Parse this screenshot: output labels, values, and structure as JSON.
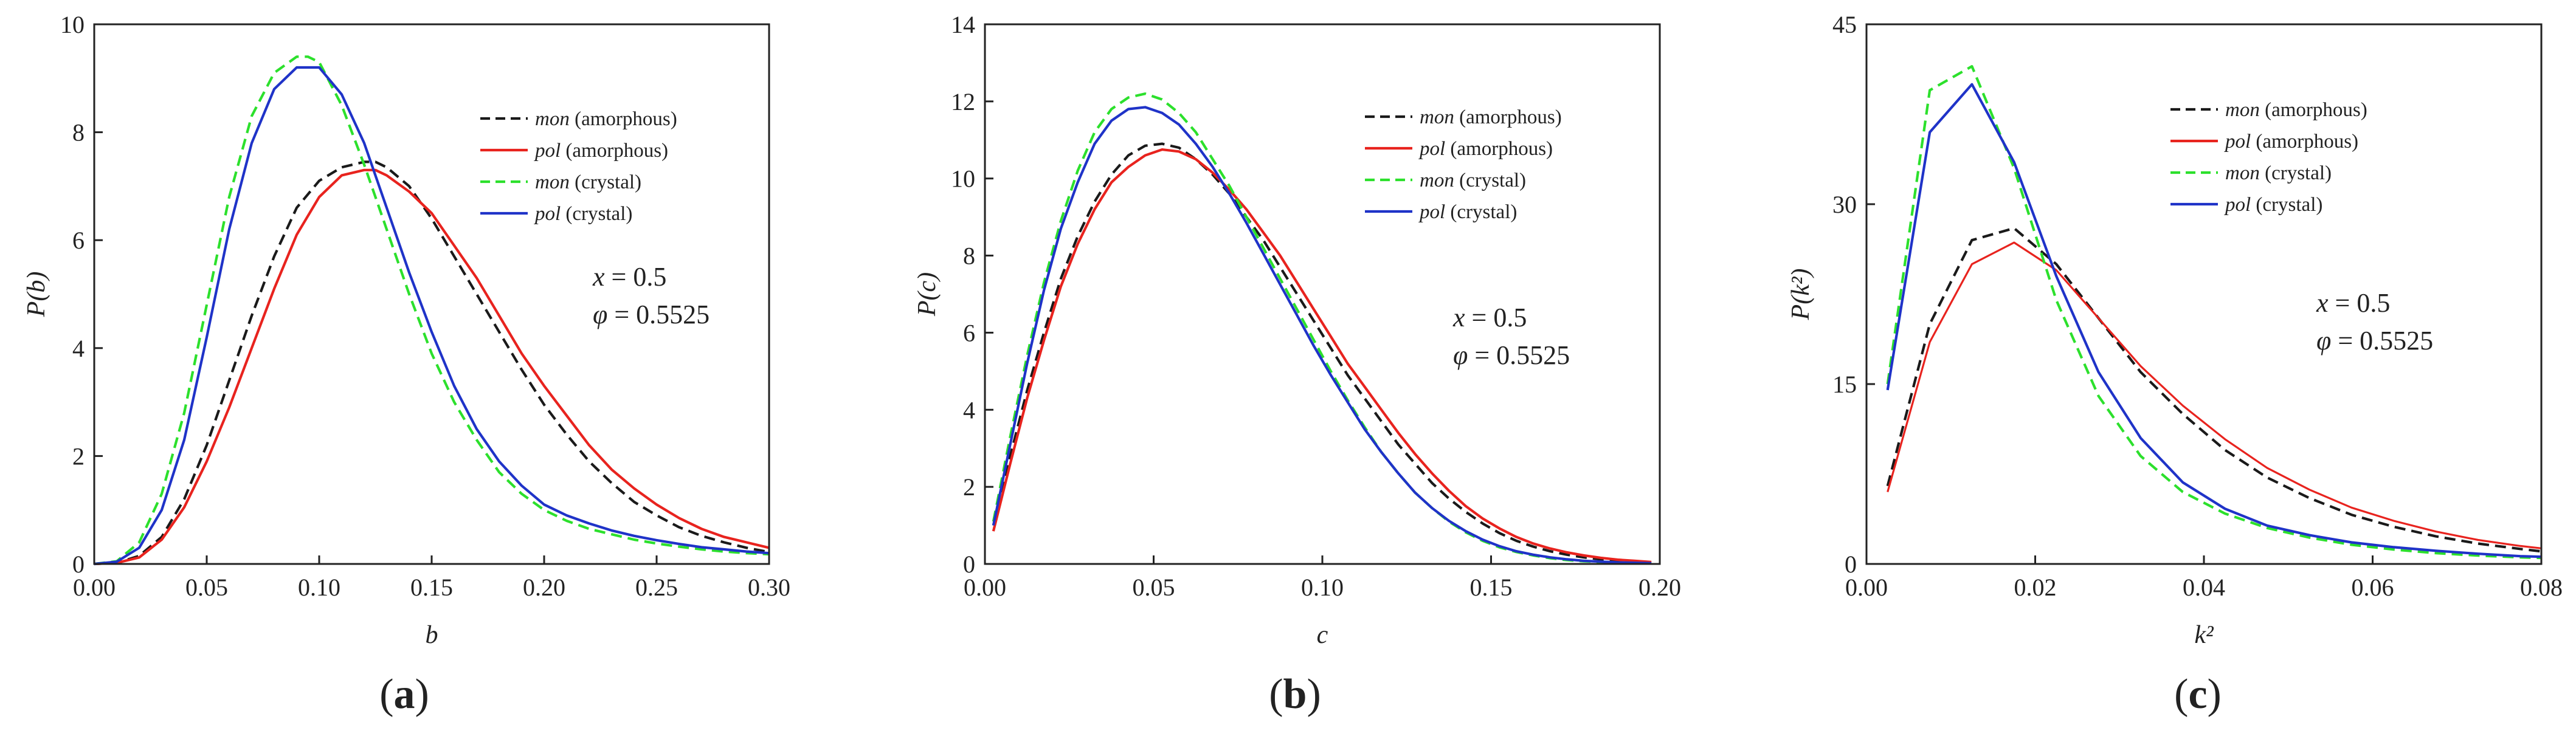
{
  "colors": {
    "mon_amorphous": "#1a1a1a",
    "pol_amorphous": "#e8231e",
    "mon_crystal": "#2ce02c",
    "pol_crystal": "#1f33c8",
    "axis": "#222222"
  },
  "chart_data": [
    {
      "type": "line",
      "panel_label": "a",
      "xlabel": "b",
      "ylabel": "P(b)",
      "xlim": [
        0,
        0.3
      ],
      "ylim": [
        0,
        10
      ],
      "xticks": [
        "0.00",
        "0.05",
        "0.10",
        "0.15",
        "0.20",
        "0.25",
        "0.30"
      ],
      "yticks": [
        "0",
        "2",
        "4",
        "6",
        "8",
        "10"
      ],
      "xtick_values": [
        0,
        0.05,
        0.1,
        0.15,
        0.2,
        0.25,
        0.3
      ],
      "ytick_values": [
        0,
        2,
        4,
        6,
        8,
        10
      ],
      "annotation": {
        "x_eq": "x",
        "x_val": " = 0.5",
        "phi_eq": "φ",
        "phi_val": " = 0.5525"
      },
      "legend_placement": "top-right",
      "series": [
        {
          "key": "mon_amorphous",
          "name_italic": "mon",
          "name_rest": " (amorphous)",
          "dash": "dashed",
          "x": [
            0,
            0.01,
            0.02,
            0.03,
            0.04,
            0.05,
            0.06,
            0.07,
            0.08,
            0.09,
            0.1,
            0.11,
            0.12,
            0.125,
            0.13,
            0.14,
            0.15,
            0.16,
            0.17,
            0.18,
            0.19,
            0.2,
            0.21,
            0.22,
            0.23,
            0.24,
            0.25,
            0.26,
            0.27,
            0.28,
            0.29,
            0.3
          ],
          "y": [
            0,
            0.02,
            0.15,
            0.5,
            1.2,
            2.2,
            3.4,
            4.6,
            5.7,
            6.6,
            7.1,
            7.35,
            7.45,
            7.45,
            7.35,
            7.0,
            6.4,
            5.7,
            5.0,
            4.3,
            3.6,
            2.95,
            2.4,
            1.9,
            1.5,
            1.15,
            0.9,
            0.68,
            0.52,
            0.4,
            0.3,
            0.22
          ]
        },
        {
          "key": "pol_amorphous",
          "name_italic": "pol",
          "name_rest": " (amorphous)",
          "dash": "solid",
          "x": [
            0,
            0.01,
            0.02,
            0.03,
            0.04,
            0.05,
            0.06,
            0.07,
            0.08,
            0.09,
            0.1,
            0.11,
            0.12,
            0.125,
            0.13,
            0.14,
            0.15,
            0.16,
            0.17,
            0.18,
            0.19,
            0.2,
            0.21,
            0.22,
            0.23,
            0.24,
            0.25,
            0.26,
            0.27,
            0.28,
            0.29,
            0.3
          ],
          "y": [
            0,
            0.02,
            0.12,
            0.45,
            1.05,
            1.9,
            2.9,
            4.0,
            5.1,
            6.1,
            6.8,
            7.2,
            7.3,
            7.3,
            7.2,
            6.9,
            6.5,
            5.9,
            5.3,
            4.6,
            3.9,
            3.3,
            2.75,
            2.2,
            1.75,
            1.4,
            1.1,
            0.85,
            0.65,
            0.5,
            0.4,
            0.3
          ]
        },
        {
          "key": "mon_crystal",
          "name_italic": "mon",
          "name_rest": " (crystal)",
          "dash": "dashed",
          "x": [
            0,
            0.01,
            0.02,
            0.03,
            0.04,
            0.05,
            0.06,
            0.07,
            0.08,
            0.09,
            0.095,
            0.1,
            0.11,
            0.12,
            0.13,
            0.14,
            0.15,
            0.16,
            0.17,
            0.18,
            0.19,
            0.2,
            0.21,
            0.22,
            0.23,
            0.24,
            0.25,
            0.26,
            0.27,
            0.28,
            0.29,
            0.3
          ],
          "y": [
            0,
            0.05,
            0.4,
            1.3,
            2.8,
            4.8,
            6.8,
            8.3,
            9.1,
            9.4,
            9.4,
            9.3,
            8.5,
            7.4,
            6.2,
            5.0,
            3.9,
            3.0,
            2.3,
            1.7,
            1.3,
            1.0,
            0.8,
            0.65,
            0.55,
            0.45,
            0.38,
            0.32,
            0.27,
            0.23,
            0.2,
            0.18
          ]
        },
        {
          "key": "pol_crystal",
          "name_italic": "pol",
          "name_rest": " (crystal)",
          "dash": "solid",
          "x": [
            0,
            0.01,
            0.02,
            0.03,
            0.04,
            0.05,
            0.06,
            0.07,
            0.08,
            0.09,
            0.1,
            0.11,
            0.12,
            0.13,
            0.14,
            0.15,
            0.16,
            0.17,
            0.18,
            0.19,
            0.2,
            0.21,
            0.22,
            0.23,
            0.24,
            0.25,
            0.26,
            0.27,
            0.28,
            0.29,
            0.3
          ],
          "y": [
            0,
            0.04,
            0.3,
            1.0,
            2.3,
            4.2,
            6.2,
            7.8,
            8.8,
            9.2,
            9.2,
            8.7,
            7.8,
            6.6,
            5.4,
            4.3,
            3.3,
            2.5,
            1.9,
            1.45,
            1.1,
            0.9,
            0.75,
            0.62,
            0.52,
            0.44,
            0.37,
            0.31,
            0.27,
            0.23,
            0.2
          ]
        }
      ]
    },
    {
      "type": "line",
      "panel_label": "b",
      "xlabel": "c",
      "ylabel": "P(c)",
      "xlim": [
        0,
        0.2
      ],
      "ylim": [
        0,
        14
      ],
      "xticks": [
        "0.00",
        "0.05",
        "0.10",
        "0.15",
        "0.20"
      ],
      "yticks": [
        "0",
        "2",
        "4",
        "6",
        "8",
        "10",
        "12",
        "14"
      ],
      "xtick_values": [
        0,
        0.05,
        0.1,
        0.15,
        0.2
      ],
      "ytick_values": [
        0,
        2,
        4,
        6,
        8,
        10,
        12,
        14
      ],
      "annotation": {
        "x_eq": "x",
        "x_val": " = 0.5",
        "phi_eq": "φ",
        "phi_val": " = 0.5525"
      },
      "legend_placement": "top-right",
      "series": [
        {
          "key": "mon_amorphous",
          "name_italic": "mon",
          "name_rest": " (amorphous)",
          "dash": "dashed",
          "x": [
            0.0025,
            0.0075,
            0.0125,
            0.0175,
            0.0225,
            0.0275,
            0.0325,
            0.0375,
            0.0425,
            0.0475,
            0.0525,
            0.0575,
            0.0625,
            0.0675,
            0.0725,
            0.0775,
            0.0825,
            0.0875,
            0.0925,
            0.0975,
            0.1025,
            0.1075,
            0.1125,
            0.1175,
            0.1225,
            0.1275,
            0.1325,
            0.1375,
            0.1425,
            0.1475,
            0.1525,
            0.1575,
            0.1625,
            0.1675,
            0.1725,
            0.1775,
            0.1825,
            0.1875,
            0.1925,
            0.1975
          ],
          "y": [
            1.0,
            2.8,
            4.5,
            6.0,
            7.4,
            8.5,
            9.4,
            10.1,
            10.6,
            10.85,
            10.9,
            10.8,
            10.5,
            10.1,
            9.6,
            9.0,
            8.4,
            7.7,
            7.0,
            6.3,
            5.6,
            4.9,
            4.3,
            3.7,
            3.1,
            2.6,
            2.1,
            1.7,
            1.35,
            1.05,
            0.8,
            0.6,
            0.45,
            0.33,
            0.24,
            0.17,
            0.12,
            0.08,
            0.05,
            0.03
          ]
        },
        {
          "key": "pol_amorphous",
          "name_italic": "pol",
          "name_rest": " (amorphous)",
          "dash": "solid",
          "x": [
            0.0025,
            0.0075,
            0.0125,
            0.0175,
            0.0225,
            0.0275,
            0.0325,
            0.0375,
            0.0425,
            0.0475,
            0.0525,
            0.0575,
            0.0625,
            0.0675,
            0.0725,
            0.0775,
            0.0825,
            0.0875,
            0.0925,
            0.0975,
            0.1025,
            0.1075,
            0.1125,
            0.1175,
            0.1225,
            0.1275,
            0.1325,
            0.1375,
            0.1425,
            0.1475,
            0.1525,
            0.1575,
            0.1625,
            0.1675,
            0.1725,
            0.1775,
            0.1825,
            0.1875,
            0.1925,
            0.1975
          ],
          "y": [
            0.85,
            2.6,
            4.3,
            5.8,
            7.2,
            8.3,
            9.2,
            9.9,
            10.3,
            10.6,
            10.75,
            10.7,
            10.5,
            10.15,
            9.7,
            9.2,
            8.6,
            8.0,
            7.3,
            6.6,
            5.9,
            5.2,
            4.6,
            4.0,
            3.4,
            2.85,
            2.35,
            1.9,
            1.5,
            1.18,
            0.92,
            0.7,
            0.53,
            0.4,
            0.3,
            0.22,
            0.16,
            0.11,
            0.08,
            0.05
          ]
        },
        {
          "key": "mon_crystal",
          "name_italic": "mon",
          "name_rest": " (crystal)",
          "dash": "dashed",
          "x": [
            0.0025,
            0.0075,
            0.0125,
            0.0175,
            0.0225,
            0.0275,
            0.0325,
            0.0375,
            0.0425,
            0.0475,
            0.0525,
            0.0575,
            0.0625,
            0.0675,
            0.0725,
            0.0775,
            0.0825,
            0.0875,
            0.0925,
            0.0975,
            0.1025,
            0.1075,
            0.1125,
            0.1175,
            0.1225,
            0.1275,
            0.1325,
            0.1375,
            0.1425,
            0.1475,
            0.1525,
            0.1575,
            0.1625,
            0.1675,
            0.1725,
            0.1775,
            0.1825,
            0.1875,
            0.1925,
            0.1975
          ],
          "y": [
            1.1,
            3.3,
            5.4,
            7.3,
            8.9,
            10.2,
            11.2,
            11.8,
            12.1,
            12.2,
            12.05,
            11.7,
            11.2,
            10.5,
            9.8,
            9.0,
            8.2,
            7.4,
            6.6,
            5.8,
            5.0,
            4.25,
            3.55,
            2.9,
            2.35,
            1.85,
            1.45,
            1.1,
            0.82,
            0.6,
            0.43,
            0.31,
            0.22,
            0.15,
            0.1,
            0.07,
            0.05,
            0.03,
            0.02,
            0.01
          ]
        },
        {
          "key": "pol_crystal",
          "name_italic": "pol",
          "name_rest": " (crystal)",
          "dash": "solid",
          "x": [
            0.0025,
            0.0075,
            0.0125,
            0.0175,
            0.0225,
            0.0275,
            0.0325,
            0.0375,
            0.0425,
            0.0475,
            0.0525,
            0.0575,
            0.0625,
            0.0675,
            0.0725,
            0.0775,
            0.0825,
            0.0875,
            0.0925,
            0.0975,
            0.1025,
            0.1075,
            0.1125,
            0.1175,
            0.1225,
            0.1275,
            0.1325,
            0.1375,
            0.1425,
            0.1475,
            0.1525,
            0.1575,
            0.1625,
            0.1675,
            0.1725,
            0.1775,
            0.1825,
            0.1875,
            0.1925,
            0.1975
          ],
          "y": [
            1.0,
            3.1,
            5.2,
            7.1,
            8.7,
            9.9,
            10.9,
            11.5,
            11.8,
            11.85,
            11.7,
            11.4,
            10.9,
            10.3,
            9.6,
            8.85,
            8.05,
            7.25,
            6.45,
            5.65,
            4.9,
            4.2,
            3.5,
            2.9,
            2.35,
            1.85,
            1.45,
            1.12,
            0.85,
            0.63,
            0.46,
            0.33,
            0.24,
            0.17,
            0.12,
            0.08,
            0.06,
            0.04,
            0.03,
            0.02
          ]
        }
      ]
    },
    {
      "type": "line",
      "panel_label": "c",
      "xlabel": "k²",
      "ylabel": "P(k²)",
      "xlim": [
        0,
        0.08
      ],
      "ylim": [
        0,
        45
      ],
      "xticks": [
        "0.00",
        "0.02",
        "0.04",
        "0.06",
        "0.08"
      ],
      "yticks": [
        "0",
        "15",
        "30",
        "45"
      ],
      "xtick_values": [
        0,
        0.02,
        0.04,
        0.06,
        0.08
      ],
      "ytick_values": [
        0,
        15,
        30,
        45
      ],
      "annotation": {
        "x_eq": "x",
        "x_val": " = 0.5",
        "phi_eq": "φ",
        "phi_val": " = 0.5525"
      },
      "legend_placement": "top-right",
      "series": [
        {
          "key": "mon_amorphous",
          "name_italic": "mon",
          "name_rest": " (amorphous)",
          "dash": "dashed",
          "x": [
            0.0025,
            0.0075,
            0.0125,
            0.0175,
            0.0225,
            0.0275,
            0.0325,
            0.0375,
            0.0425,
            0.0475,
            0.0525,
            0.0575,
            0.0625,
            0.0675,
            0.0725,
            0.0775,
            0.08
          ],
          "y": [
            6.5,
            20.0,
            27.0,
            28.0,
            25.0,
            20.5,
            16.0,
            12.5,
            9.5,
            7.2,
            5.5,
            4.1,
            3.1,
            2.3,
            1.7,
            1.25,
            1.05
          ]
        },
        {
          "key": "pol_amorphous",
          "name_italic": "pol",
          "name_rest": " (amorphous)",
          "dash": "solid",
          "x": [
            0.0025,
            0.0075,
            0.0125,
            0.0175,
            0.0225,
            0.0275,
            0.0325,
            0.0375,
            0.0425,
            0.0475,
            0.0525,
            0.0575,
            0.0625,
            0.0675,
            0.0725,
            0.0775,
            0.08
          ],
          "y": [
            6.0,
            18.5,
            25.0,
            26.8,
            24.5,
            20.5,
            16.5,
            13.2,
            10.4,
            8.0,
            6.2,
            4.7,
            3.6,
            2.7,
            2.0,
            1.5,
            1.3
          ]
        },
        {
          "key": "mon_crystal",
          "name_italic": "mon",
          "name_rest": " (crystal)",
          "dash": "dashed",
          "x": [
            0.0025,
            0.0075,
            0.0125,
            0.0175,
            0.0225,
            0.0275,
            0.0325,
            0.0375,
            0.0425,
            0.0475,
            0.0525,
            0.0575,
            0.0625,
            0.0675,
            0.0725,
            0.0775,
            0.08
          ],
          "y": [
            15.0,
            39.5,
            41.5,
            33.0,
            22.0,
            14.0,
            9.0,
            6.0,
            4.2,
            3.0,
            2.2,
            1.6,
            1.2,
            0.9,
            0.7,
            0.55,
            0.5
          ]
        },
        {
          "key": "pol_crystal",
          "name_italic": "pol",
          "name_rest": " (crystal)",
          "dash": "solid",
          "x": [
            0.0025,
            0.0075,
            0.0125,
            0.0175,
            0.0225,
            0.0275,
            0.0325,
            0.0375,
            0.0425,
            0.0475,
            0.0525,
            0.0575,
            0.0625,
            0.0675,
            0.0725,
            0.0775,
            0.08
          ],
          "y": [
            14.5,
            36.0,
            40.0,
            33.5,
            24.0,
            16.0,
            10.5,
            6.8,
            4.6,
            3.2,
            2.4,
            1.8,
            1.4,
            1.1,
            0.85,
            0.65,
            0.6
          ]
        }
      ]
    }
  ]
}
